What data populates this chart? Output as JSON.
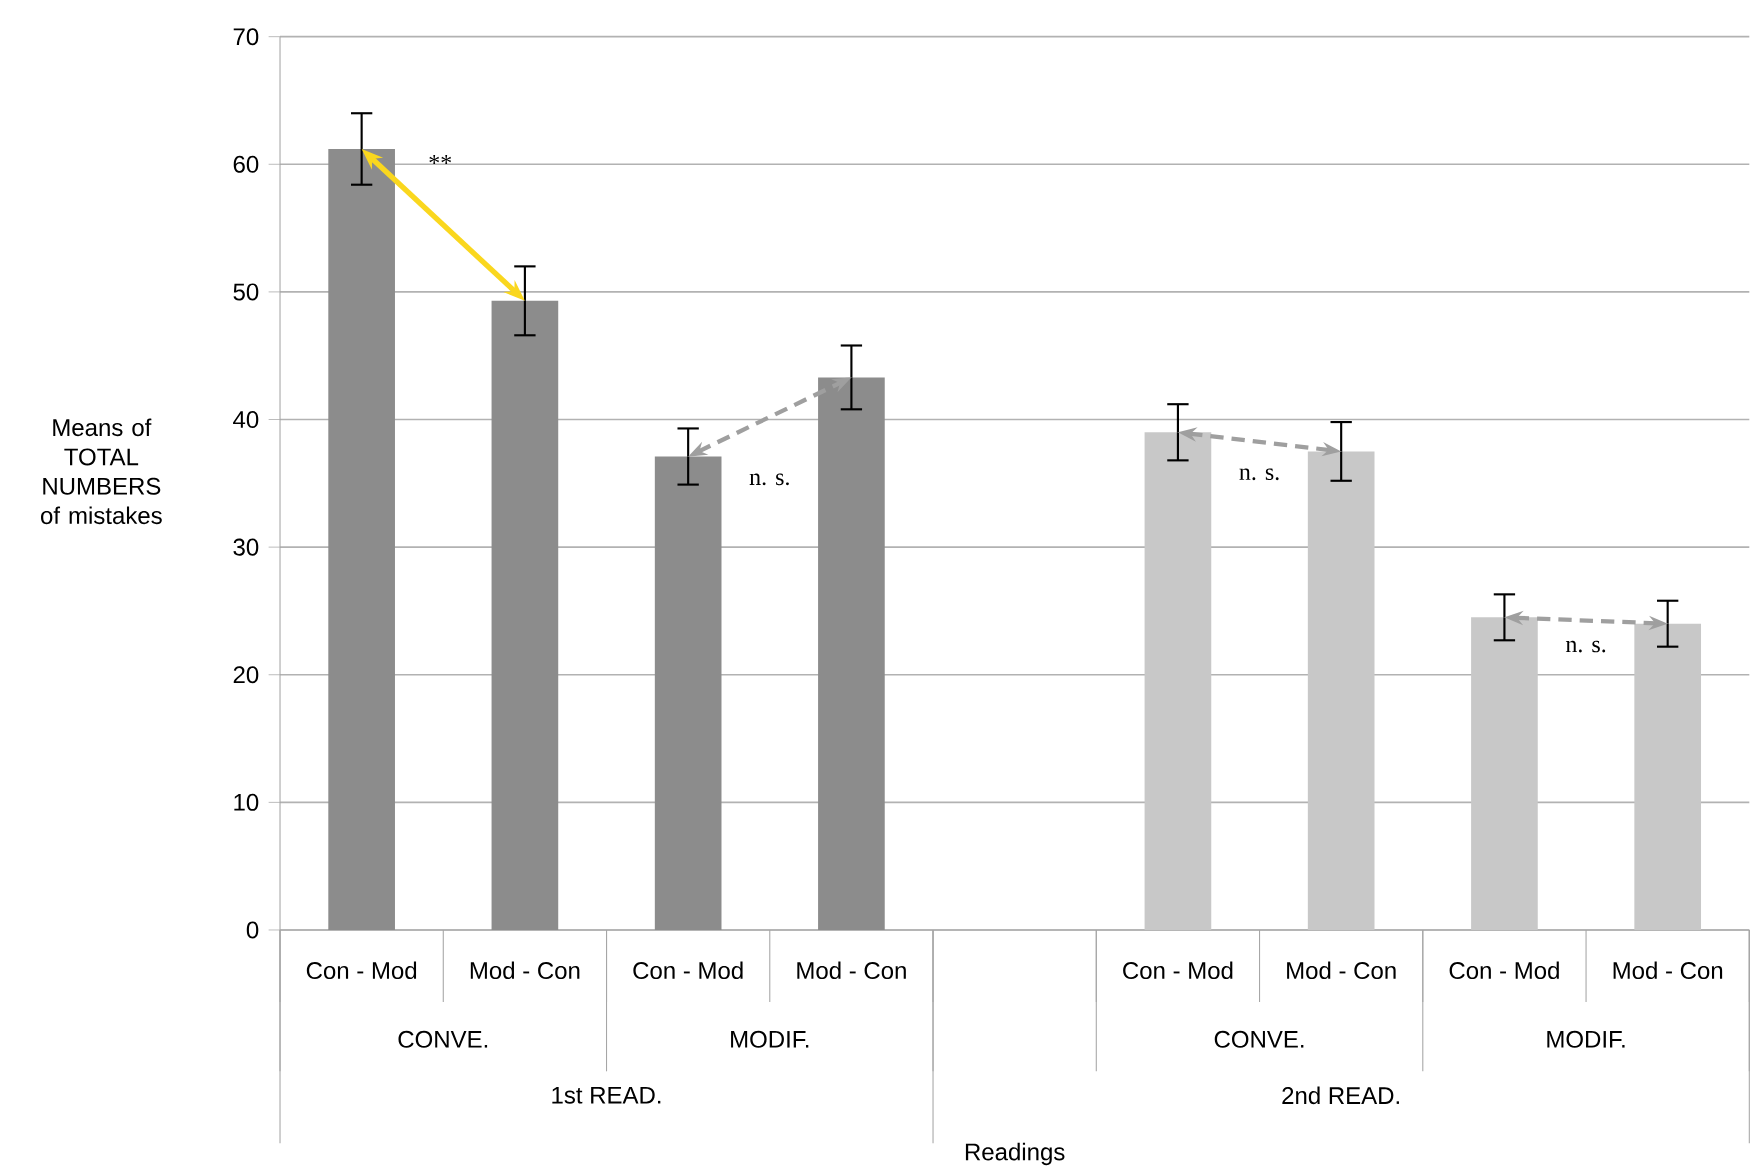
{
  "chart_data": {
    "type": "bar",
    "ylabel": "Means of TOTAL NUMBERS of mistakes",
    "categories": [
      "Con - Mod",
      "Mod - Con",
      "Con - Mod",
      "Mod - Con",
      null,
      "Con - Mod",
      "Mod - Con",
      "Con - Mod",
      "Mod - Con"
    ],
    "values": [
      61.2,
      49.3,
      37.1,
      43.3,
      null,
      39,
      37.5,
      24.5,
      24
    ],
    "errors": [
      2.8,
      2.7,
      2.2,
      2.5,
      null,
      2.2,
      2.3,
      1.8,
      1.8
    ],
    "colors": [
      "#8c8c8c",
      "#8c8c8c",
      "#8c8c8c",
      "#8c8c8c",
      "#c8c8c8",
      "#c8c8c8",
      "#c8c8c8",
      "#c8c8c8",
      "#c8c8c8"
    ],
    "ylim": [
      0,
      70
    ],
    "yticks": [
      0,
      10,
      20,
      30,
      40,
      50,
      60,
      70
    ],
    "grid": "y",
    "annotations": [
      "**",
      "n. s.",
      "n. s.",
      "n. s.",
      "CONVE.",
      "MODIF.",
      "CONVE.",
      "MODIF.",
      "1st READ.",
      "2nd READ.",
      "Readings"
    ]
  }
}
